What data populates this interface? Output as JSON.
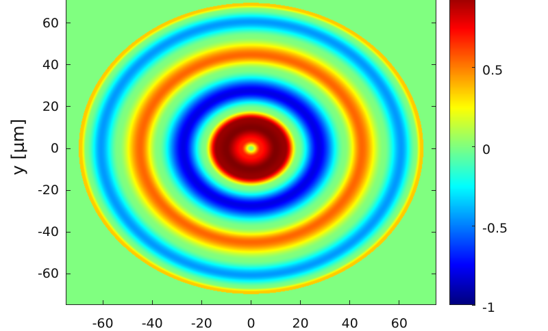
{
  "chart_data": {
    "type": "heatmap",
    "title": "",
    "xlabel": "",
    "ylabel": "y [μm]",
    "xlim": [
      -75,
      75
    ],
    "ylim": [
      -75,
      75
    ],
    "xticks": [
      -60,
      -40,
      -20,
      0,
      20,
      40,
      60
    ],
    "yticks": [
      60,
      40,
      20,
      0,
      -20,
      -40,
      -60
    ],
    "colormap": "jet",
    "clim": [
      -1,
      1
    ],
    "colorbar_ticks": [
      0.5,
      0,
      -0.5,
      -1
    ],
    "colorbar_tick_labels": [
      "0.5",
      "0",
      "-0.5",
      "-1"
    ],
    "pattern": "concentric rings centered at (0,0), radius 70, value 0 outside",
    "radial_profile": {
      "r": [
        0,
        4,
        10,
        14,
        19,
        27.5,
        38,
        45,
        54,
        61,
        67,
        69,
        70
      ],
      "value": [
        0,
        0.7,
        1,
        0.95,
        0,
        -0.8,
        0,
        0.55,
        0,
        -0.45,
        0,
        0.35,
        0.35
      ]
    },
    "outside_value": 0
  }
}
